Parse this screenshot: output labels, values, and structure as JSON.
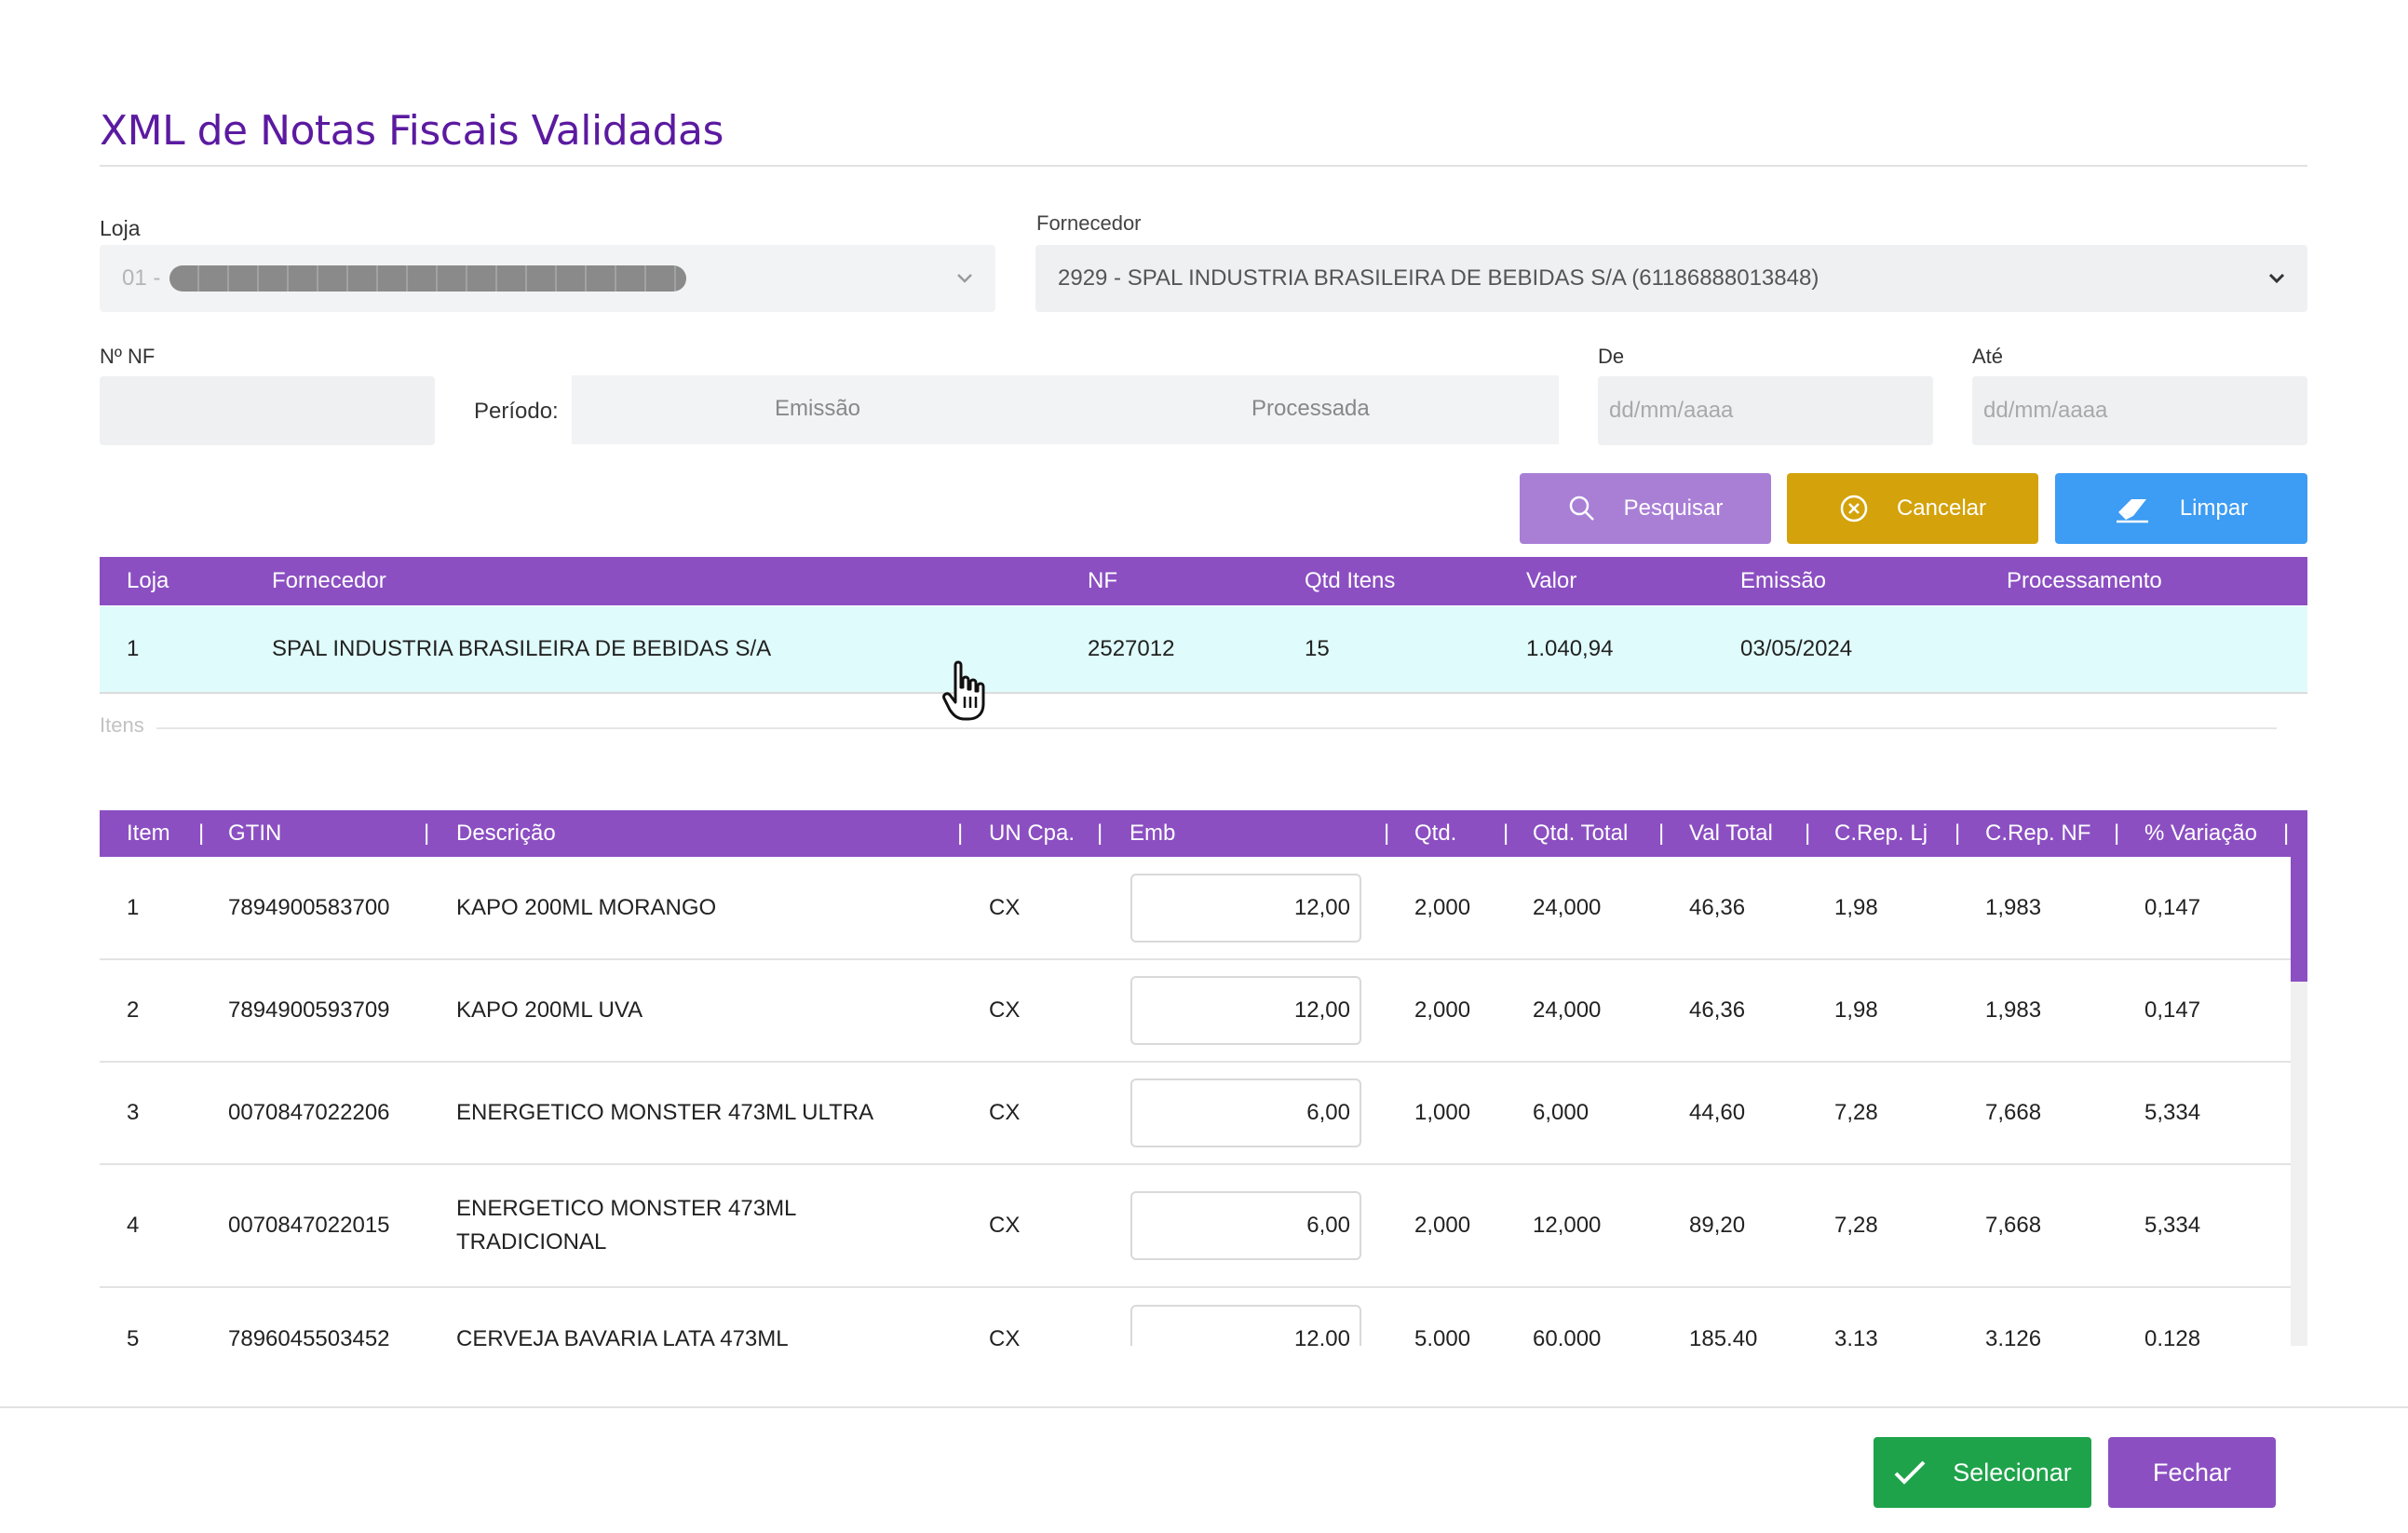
{
  "title": "XML de Notas Fiscais Validadas",
  "filters": {
    "loja_label": "Loja",
    "loja_value": "01 -",
    "fornecedor_label": "Fornecedor",
    "fornecedor_value": "2929 - SPAL INDUSTRIA BRASILEIRA DE BEBIDAS S/A (61186888013848)",
    "nf_label": "Nº NF",
    "periodo_label": "Período:",
    "emissao_option": "Emissão",
    "processada_option": "Processada",
    "de_label": "De",
    "de_placeholder": "dd/mm/aaaa",
    "ate_label": "Até",
    "ate_placeholder": "dd/mm/aaaa"
  },
  "actions": {
    "pesquisar": "Pesquisar",
    "cancelar": "Cancelar",
    "limpar": "Limpar"
  },
  "notes_table": {
    "headers": {
      "loja": "Loja",
      "fornecedor": "Fornecedor",
      "nf": "NF",
      "qtd_itens": "Qtd Itens",
      "valor": "Valor",
      "emissao": "Emissão",
      "processamento": "Processamento"
    },
    "row": {
      "loja": "1",
      "fornecedor": "SPAL INDUSTRIA BRASILEIRA DE BEBIDAS S/A",
      "nf": "2527012",
      "qtd_itens": "15",
      "valor": "1.040,94",
      "emissao": "03/05/2024",
      "processamento": ""
    }
  },
  "itens_legend": "Itens",
  "items_table": {
    "headers": {
      "item": "Item",
      "gtin": "GTIN",
      "descricao": "Descrição",
      "un_cpa": "UN Cpa.",
      "emb": "Emb",
      "qtd": "Qtd.",
      "qtd_total": "Qtd. Total",
      "val_total": "Val Total",
      "crep_lj": "C.Rep. Lj",
      "crep_nf": "C.Rep. NF",
      "variacao": "% Variação"
    },
    "rows": [
      {
        "item": "1",
        "gtin": "7894900583700",
        "descricao": "KAPO 200ML MORANGO",
        "un": "CX",
        "emb": "12,00",
        "qtd": "2,000",
        "qtd_total": "24,000",
        "val_total": "46,36",
        "crep_lj": "1,98",
        "crep_nf": "1,983",
        "variacao": "0,147"
      },
      {
        "item": "2",
        "gtin": "7894900593709",
        "descricao": "KAPO 200ML UVA",
        "un": "CX",
        "emb": "12,00",
        "qtd": "2,000",
        "qtd_total": "24,000",
        "val_total": "46,36",
        "crep_lj": "1,98",
        "crep_nf": "1,983",
        "variacao": "0,147"
      },
      {
        "item": "3",
        "gtin": "0070847022206",
        "descricao": "ENERGETICO MONSTER 473ML ULTRA",
        "un": "CX",
        "emb": "6,00",
        "qtd": "1,000",
        "qtd_total": "6,000",
        "val_total": "44,60",
        "crep_lj": "7,28",
        "crep_nf": "7,668",
        "variacao": "5,334"
      },
      {
        "item": "4",
        "gtin": "0070847022015",
        "descricao": "ENERGETICO MONSTER 473ML TRADICIONAL",
        "un": "CX",
        "emb": "6,00",
        "qtd": "2,000",
        "qtd_total": "12,000",
        "val_total": "89,20",
        "crep_lj": "7,28",
        "crep_nf": "7,668",
        "variacao": "5,334"
      },
      {
        "item": "5",
        "gtin": "7896045503452",
        "descricao": "CERVEJA BAVARIA LATA 473ML",
        "un": "CX",
        "emb": "12.00",
        "qtd": "5.000",
        "qtd_total": "60.000",
        "val_total": "185.40",
        "crep_lj": "3.13",
        "crep_nf": "3.126",
        "variacao": "0.128"
      }
    ]
  },
  "footer": {
    "selecionar": "Selecionar",
    "fechar": "Fechar"
  },
  "colors": {
    "title": "#5b1aa0",
    "table_header": "#8b4fc2",
    "pesquisar": "#a97fd6",
    "cancelar": "#d4a20a",
    "limpar": "#3d9cf3",
    "selecionar": "#1ea34a",
    "fechar": "#8b4fc2",
    "selected_row": "#e0fbfb"
  },
  "icons": {
    "pesquisar": "search-icon",
    "cancelar": "circle-x-icon",
    "limpar": "eraser-icon",
    "selecionar": "check-icon",
    "cursor": "hand-pointer-icon"
  }
}
